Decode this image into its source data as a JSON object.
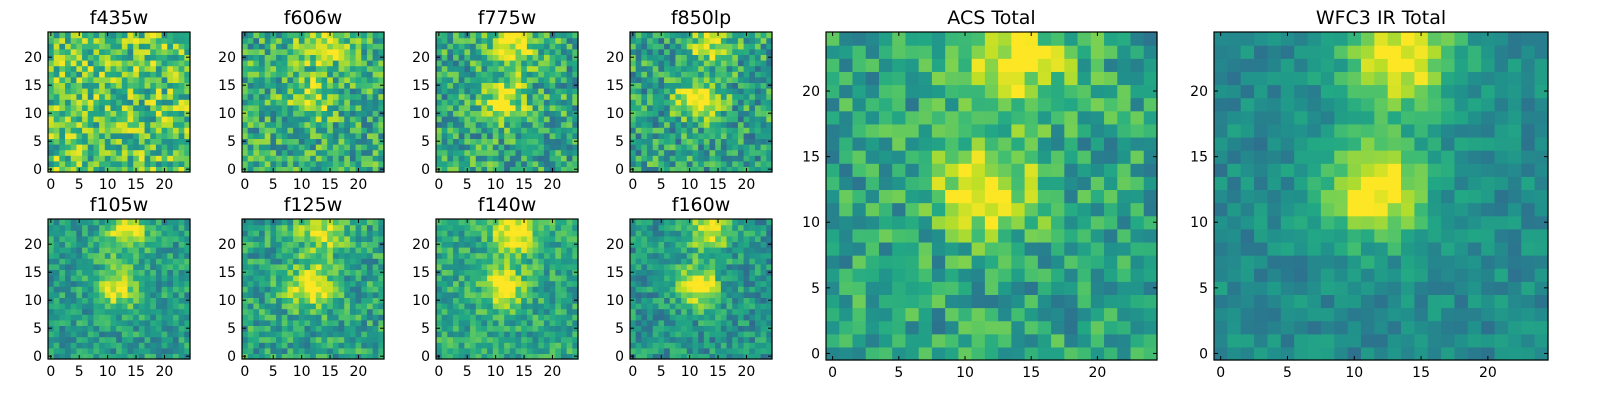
{
  "figure": {
    "panels": [
      {
        "title": "f435w",
        "xticks": [
          0,
          5,
          10,
          15,
          20
        ],
        "yticks": [
          0,
          5,
          10,
          15,
          20
        ],
        "centerBright": 0.0,
        "topBright": 0.0,
        "noise": 0.55,
        "baseLevel": 0.72
      },
      {
        "title": "f606w",
        "xticks": [
          0,
          5,
          10,
          15,
          20
        ],
        "yticks": [
          0,
          5,
          10,
          15,
          20
        ],
        "centerBright": 0.3,
        "topBright": 0.35,
        "noise": 0.5,
        "baseLevel": 0.62
      },
      {
        "title": "f775w",
        "xticks": [
          0,
          5,
          10,
          15,
          20
        ],
        "yticks": [
          0,
          5,
          10,
          15,
          20
        ],
        "centerBright": 0.4,
        "topBright": 0.4,
        "noise": 0.5,
        "baseLevel": 0.6
      },
      {
        "title": "f850lp",
        "xticks": [
          0,
          5,
          10,
          15,
          20
        ],
        "yticks": [
          0,
          5,
          10,
          15,
          20
        ],
        "centerBright": 0.45,
        "topBright": 0.35,
        "noise": 0.5,
        "baseLevel": 0.58
      },
      {
        "title": "f105w",
        "xticks": [
          0,
          5,
          10,
          15,
          20
        ],
        "yticks": [
          0,
          5,
          10,
          15,
          20
        ],
        "centerBright": 0.45,
        "topBright": 0.4,
        "noise": 0.35,
        "baseLevel": 0.55
      },
      {
        "title": "f125w",
        "xticks": [
          0,
          5,
          10,
          15,
          20
        ],
        "yticks": [
          0,
          5,
          10,
          15,
          20
        ],
        "centerBright": 0.5,
        "topBright": 0.35,
        "noise": 0.4,
        "baseLevel": 0.58
      },
      {
        "title": "f140w",
        "xticks": [
          0,
          5,
          10,
          15,
          20
        ],
        "yticks": [
          0,
          5,
          10,
          15,
          20
        ],
        "centerBright": 0.4,
        "topBright": 0.45,
        "noise": 0.35,
        "baseLevel": 0.6
      },
      {
        "title": "f160w",
        "xticks": [
          0,
          5,
          10,
          15,
          20
        ],
        "yticks": [
          0,
          5,
          10,
          15,
          20
        ],
        "centerBright": 0.55,
        "topBright": 0.45,
        "noise": 0.35,
        "baseLevel": 0.52
      },
      {
        "title": "ACS Total",
        "xticks": [
          0,
          5,
          10,
          15,
          20
        ],
        "yticks": [
          0,
          5,
          10,
          15,
          20
        ],
        "centerBright": 0.5,
        "topBright": 0.45,
        "noise": 0.4,
        "baseLevel": 0.58
      },
      {
        "title": "WFC3 IR Total",
        "xticks": [
          0,
          5,
          10,
          15,
          20
        ],
        "yticks": [
          0,
          5,
          10,
          15,
          20
        ],
        "centerBright": 0.6,
        "topBright": 0.55,
        "noise": 0.22,
        "baseLevel": 0.48
      }
    ]
  },
  "chart_data": {
    "type": "heatmap",
    "colormap": "viridis",
    "grid_size": [
      25,
      25
    ],
    "xlim": [
      0,
      24
    ],
    "ylim": [
      0,
      24
    ],
    "grid": false,
    "note_fields": [
      "centerBright",
      "topBright",
      "noise",
      "baseLevel"
    ]
  }
}
